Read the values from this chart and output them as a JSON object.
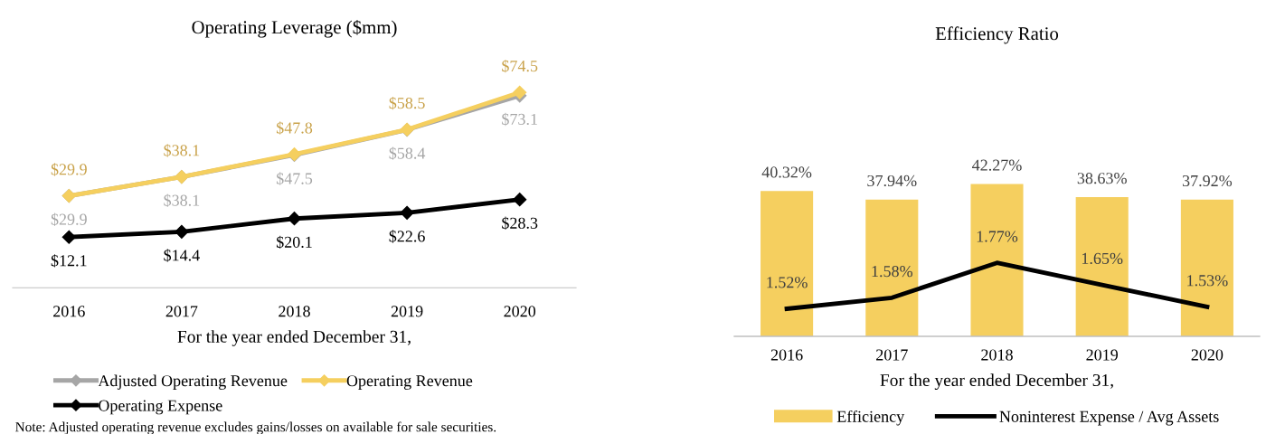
{
  "chart_data": [
    {
      "type": "line",
      "title": "Operating Leverage ($mm)",
      "xlabel": "For the year ended December 31,",
      "categories": [
        "2016",
        "2017",
        "2018",
        "2019",
        "2020"
      ],
      "series": [
        {
          "name": "Adjusted Operating Revenue",
          "color": "#a6a6a6",
          "values": [
            29.9,
            38.1,
            47.5,
            58.4,
            73.1
          ],
          "value_labels": [
            "$29.9",
            "$38.1",
            "$47.5",
            "$58.4",
            "$73.1"
          ]
        },
        {
          "name": "Operating Revenue",
          "color": "#f5cf5f",
          "values": [
            29.9,
            38.1,
            47.8,
            58.5,
            74.5
          ],
          "value_labels": [
            "$29.9",
            "$38.1",
            "$47.8",
            "$58.5",
            "$74.5"
          ]
        },
        {
          "name": "Operating Expense",
          "color": "#000000",
          "values": [
            12.1,
            14.4,
            20.1,
            22.6,
            28.3
          ],
          "value_labels": [
            "$12.1",
            "$14.4",
            "$20.1",
            "$22.6",
            "$28.3"
          ]
        }
      ],
      "marker": "diamond",
      "line_style": "solid",
      "grid": false,
      "legend": "bottom",
      "tick_labels": "x",
      "annotations": [
        "Note: Adjusted operating revenue excludes gains/losses on available for sale securities."
      ]
    },
    {
      "type": "bar",
      "title": "Efficiency Ratio",
      "xlabel": "For the year ended December 31,",
      "categories": [
        "2016",
        "2017",
        "2018",
        "2019",
        "2020"
      ],
      "series": [
        {
          "name": "Efficiency",
          "color": "#f5cf5f",
          "values": [
            40.32,
            37.94,
            42.27,
            38.63,
            37.92
          ],
          "value_labels": [
            "40.32%",
            "37.94%",
            "42.27%",
            "38.63%",
            "37.92%"
          ]
        },
        {
          "name": "Noninterest Expense / Avg Assets",
          "type": "line",
          "axis": "y2",
          "color": "#000000",
          "values": [
            1.52,
            1.58,
            1.77,
            1.65,
            1.53
          ],
          "value_labels": [
            "1.52%",
            "1.58%",
            "1.77%",
            "1.65%",
            "1.53%"
          ]
        }
      ],
      "marker": "none",
      "grid": false,
      "legend": "bottom",
      "tick_labels": "x"
    }
  ]
}
